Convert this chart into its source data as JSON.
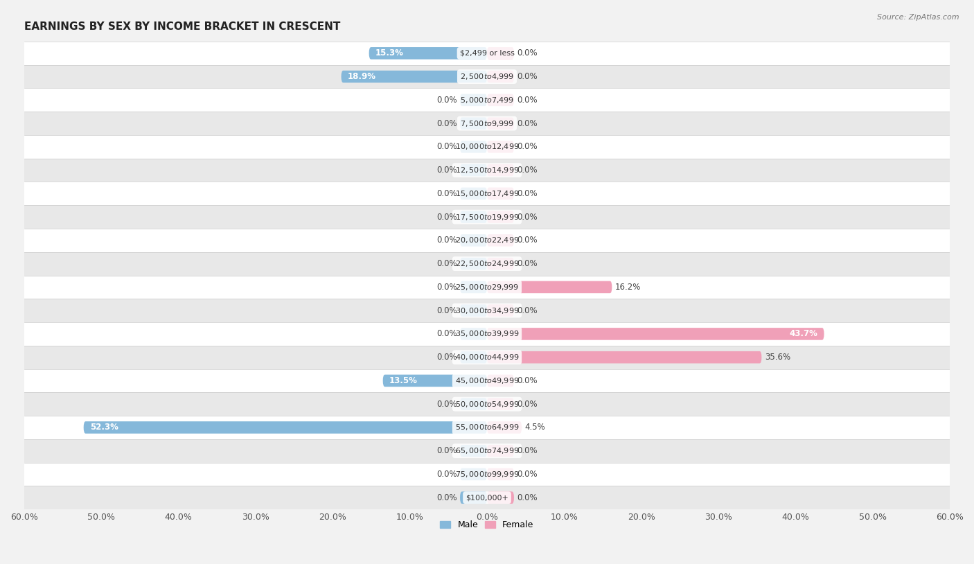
{
  "title": "EARNINGS BY SEX BY INCOME BRACKET IN CRESCENT",
  "source": "Source: ZipAtlas.com",
  "categories": [
    "$2,499 or less",
    "$2,500 to $4,999",
    "$5,000 to $7,499",
    "$7,500 to $9,999",
    "$10,000 to $12,499",
    "$12,500 to $14,999",
    "$15,000 to $17,499",
    "$17,500 to $19,999",
    "$20,000 to $22,499",
    "$22,500 to $24,999",
    "$25,000 to $29,999",
    "$30,000 to $34,999",
    "$35,000 to $39,999",
    "$40,000 to $44,999",
    "$45,000 to $49,999",
    "$50,000 to $54,999",
    "$55,000 to $64,999",
    "$65,000 to $74,999",
    "$75,000 to $99,999",
    "$100,000+"
  ],
  "male_values": [
    15.3,
    18.9,
    0.0,
    0.0,
    0.0,
    0.0,
    0.0,
    0.0,
    0.0,
    0.0,
    0.0,
    0.0,
    0.0,
    0.0,
    13.5,
    0.0,
    52.3,
    0.0,
    0.0,
    0.0
  ],
  "female_values": [
    0.0,
    0.0,
    0.0,
    0.0,
    0.0,
    0.0,
    0.0,
    0.0,
    0.0,
    0.0,
    16.2,
    0.0,
    43.7,
    35.6,
    0.0,
    0.0,
    4.5,
    0.0,
    0.0,
    0.0
  ],
  "male_color": "#85b8da",
  "female_color": "#f0a0b8",
  "label_inside_color": "#ffffff",
  "background_color": "#f2f2f2",
  "row_color_odd": "#ffffff",
  "row_color_even": "#e8e8e8",
  "xlim": 60.0,
  "bar_height": 0.52,
  "label_fontsize": 8.5,
  "title_fontsize": 11,
  "category_fontsize": 8.0,
  "axis_label_fontsize": 9,
  "legend_fontsize": 9,
  "pill_color": "#ffffff",
  "pill_alpha": 0.85
}
